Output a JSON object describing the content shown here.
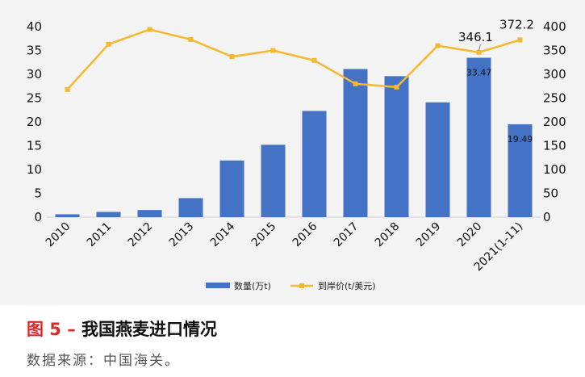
{
  "chart_data": {
    "type": "bar",
    "categories": [
      "2010",
      "2011",
      "2012",
      "2013",
      "2014",
      "2015",
      "2016",
      "2017",
      "2018",
      "2019",
      "2020",
      "2021(1-11)"
    ],
    "series": [
      {
        "name": "数量(万t)",
        "type": "bar",
        "axis": "left",
        "color": "#4472c4",
        "values": [
          0.6,
          1.1,
          1.5,
          4.0,
          11.9,
          15.2,
          22.3,
          31.1,
          29.6,
          24.1,
          33.47,
          19.49
        ]
      },
      {
        "name": "到岸价(t/美元)",
        "type": "line",
        "axis": "right",
        "color": "#f5b82e",
        "values": [
          268,
          363,
          394,
          373,
          337,
          350,
          329,
          280,
          273,
          360,
          346.1,
          372.2
        ]
      }
    ],
    "data_labels": [
      {
        "series": 0,
        "index": 10,
        "text": "33.47"
      },
      {
        "series": 0,
        "index": 11,
        "text": "19.49"
      },
      {
        "series": 1,
        "index": 10,
        "text": "346.1"
      },
      {
        "series": 1,
        "index": 11,
        "text": "372.2"
      }
    ],
    "yleft": {
      "min": 0,
      "max": 40,
      "ticks": [
        "0",
        "5",
        "10",
        "15",
        "20",
        "25",
        "30",
        "35",
        "40"
      ]
    },
    "yright": {
      "min": 0,
      "max": 400,
      "ticks": [
        "0",
        "50",
        "100",
        "150",
        "200",
        "250",
        "300",
        "350",
        "400"
      ]
    },
    "grid": false,
    "legend": "bottom"
  },
  "caption": {
    "prefix": "图 5 –",
    "title": "我国燕麦进口情况"
  },
  "source": "数据来源：中国海关。",
  "colors": {
    "panel_background": "#f3f3f3",
    "caption_accent": "#d62b2b"
  }
}
